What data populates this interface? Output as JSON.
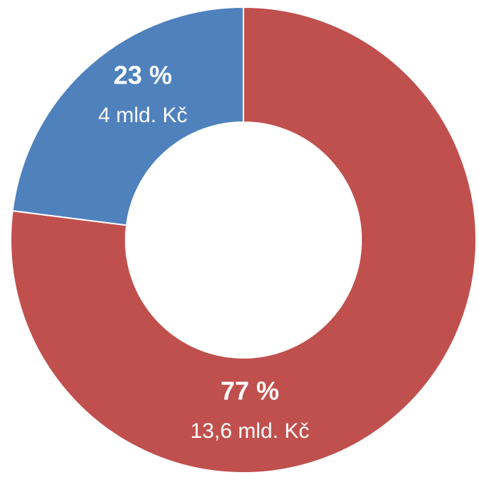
{
  "chart_data": {
    "type": "donut",
    "categories": [
      null,
      null
    ],
    "values": [
      77,
      23
    ],
    "value_labels": [
      "77 %",
      "23 %"
    ],
    "amount_labels": [
      "13,6 mld. Kč",
      "4 mld. Kč"
    ],
    "colors": [
      "#c0504d",
      "#4f81bd"
    ]
  }
}
